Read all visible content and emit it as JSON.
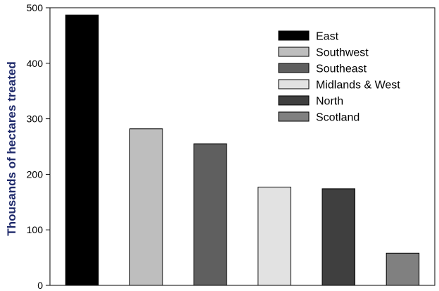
{
  "chart_data": {
    "type": "bar",
    "title": "",
    "xlabel": "",
    "ylabel": "Thousands of hectares treated",
    "ylim": [
      0,
      500
    ],
    "yticks": [
      0,
      100,
      200,
      300,
      400,
      500
    ],
    "grid": false,
    "legend_position": "top-right",
    "categories": [
      "East",
      "Southwest",
      "Southeast",
      "Midlands & West",
      "North",
      "Scotland"
    ],
    "values": [
      487,
      282,
      255,
      177,
      174,
      58
    ],
    "colors": [
      "#000000",
      "#bebebe",
      "#5f5f5f",
      "#e2e2e2",
      "#3f3f3f",
      "#808080"
    ]
  }
}
